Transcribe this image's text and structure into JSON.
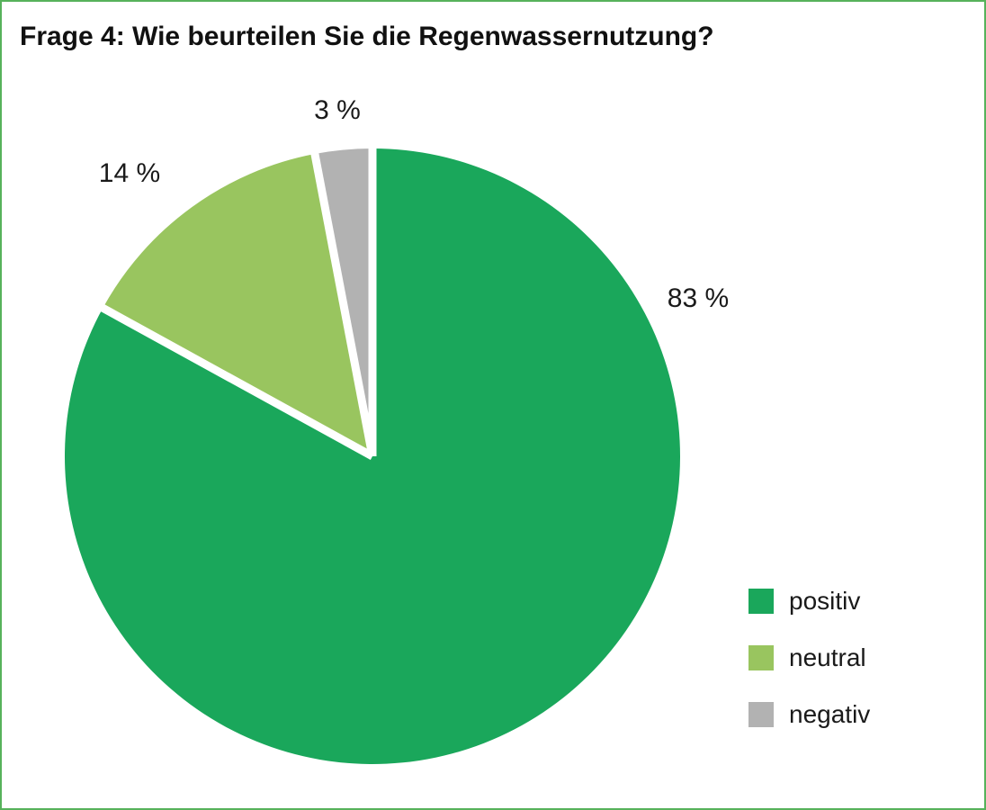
{
  "title": "Frage 4: Wie beurteilen Sie die Regenwassernutzung?",
  "chart_data": {
    "type": "pie",
    "title": "Frage 4: Wie beurteilen Sie die Regenwassernutzung?",
    "categories": [
      "positiv",
      "neutral",
      "negativ"
    ],
    "values": [
      83,
      14,
      3
    ],
    "unit": "%",
    "slice_labels": [
      "83 %",
      "14 %",
      "3 %"
    ],
    "colors": [
      "#1aa75b",
      "#99c55f",
      "#b2b2b2"
    ],
    "separator_color": "#ffffff",
    "start_angle_deg": 0,
    "direction": "clockwise",
    "legend_position": "right",
    "frame_border_color": "#57b25b"
  },
  "legend": {
    "items": [
      {
        "label": "positiv",
        "color": "#1aa75b"
      },
      {
        "label": "neutral",
        "color": "#99c55f"
      },
      {
        "label": "negativ",
        "color": "#b2b2b2"
      }
    ]
  }
}
